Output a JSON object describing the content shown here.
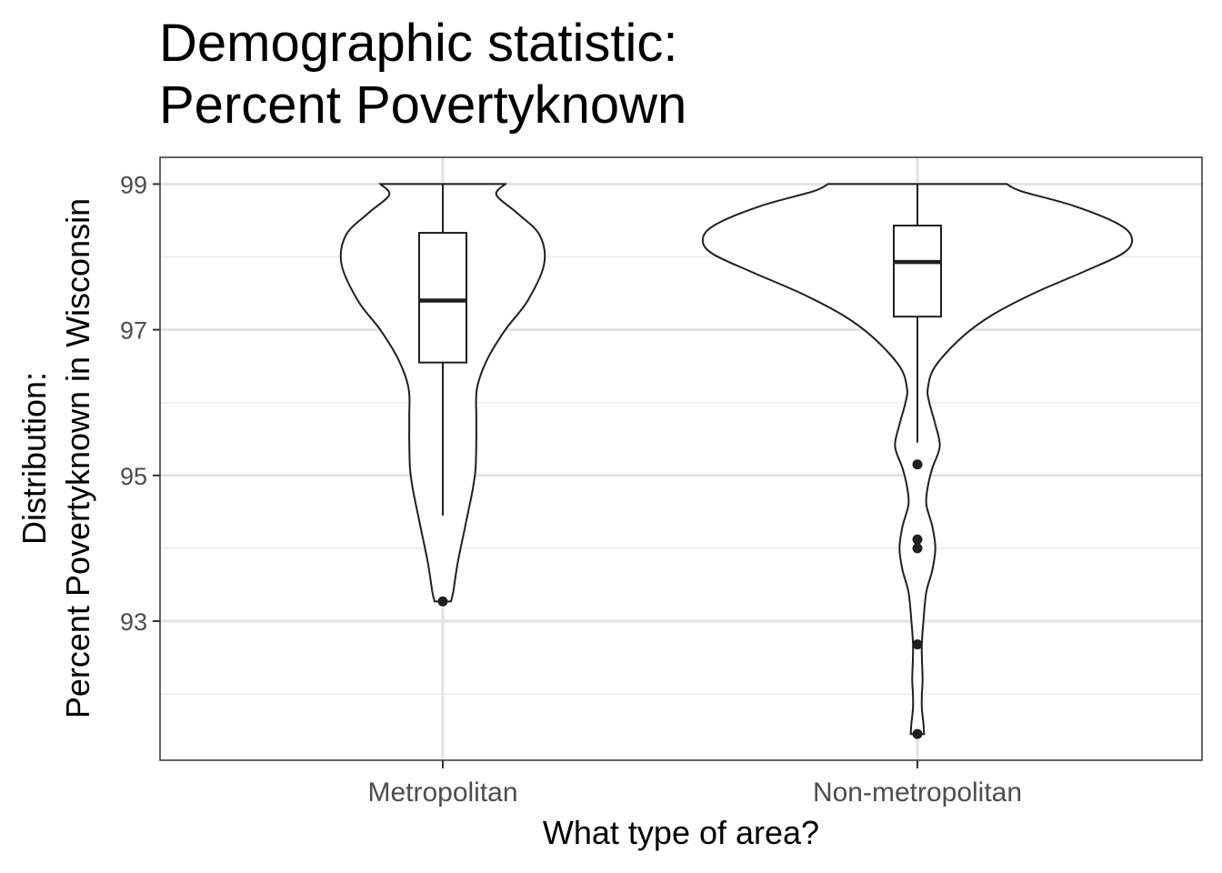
{
  "chart_data": {
    "type": "violin",
    "title": [
      "Demographic statistic:",
      "Percent Povertyknown"
    ],
    "xlabel": "What type of area?",
    "ylabel": [
      "Distribution:",
      "Percent Povertyknown in Wisconsin"
    ],
    "categories": [
      "Metropolitan",
      "Non-metropolitan"
    ],
    "y_ticks": [
      93,
      95,
      97,
      99
    ],
    "y_minor": [
      92,
      94,
      96,
      98
    ],
    "ylim": [
      91.8,
      99.35
    ],
    "grid": true,
    "groups": [
      {
        "name": "Metropolitan",
        "box": {
          "min": 94.45,
          "q1": 96.55,
          "median": 97.4,
          "q3": 98.33,
          "max": 99.0
        },
        "outliers": [
          93.27
        ],
        "density_range": [
          93.27,
          99.0
        ],
        "density": [
          [
            93.27,
            0.055
          ],
          [
            93.4,
            0.07
          ],
          [
            93.8,
            0.1
          ],
          [
            94.3,
            0.15
          ],
          [
            94.8,
            0.2
          ],
          [
            95.1,
            0.22
          ],
          [
            95.5,
            0.225
          ],
          [
            95.8,
            0.225
          ],
          [
            96.2,
            0.23
          ],
          [
            96.6,
            0.3
          ],
          [
            97.0,
            0.42
          ],
          [
            97.4,
            0.57
          ],
          [
            97.9,
            0.68
          ],
          [
            98.3,
            0.65
          ],
          [
            98.6,
            0.5
          ],
          [
            98.85,
            0.36
          ],
          [
            99.0,
            0.42
          ]
        ]
      },
      {
        "name": "Non-metropolitan",
        "box": {
          "min": 95.45,
          "q1": 97.18,
          "median": 97.93,
          "q3": 98.43,
          "max": 99.0
        },
        "outliers": [
          95.15,
          94.12,
          94.0,
          92.68,
          91.45
        ],
        "density_range": [
          91.45,
          99.0
        ],
        "density": [
          [
            91.45,
            0.045
          ],
          [
            91.6,
            0.04
          ],
          [
            91.8,
            0.03
          ],
          [
            92.0,
            0.03
          ],
          [
            92.2,
            0.035
          ],
          [
            92.5,
            0.03
          ],
          [
            92.7,
            0.03
          ],
          [
            93.0,
            0.04
          ],
          [
            93.4,
            0.06
          ],
          [
            93.7,
            0.1
          ],
          [
            94.0,
            0.12
          ],
          [
            94.3,
            0.1
          ],
          [
            94.6,
            0.06
          ],
          [
            94.85,
            0.07
          ],
          [
            95.1,
            0.1
          ],
          [
            95.4,
            0.15
          ],
          [
            95.7,
            0.12
          ],
          [
            96.0,
            0.08
          ],
          [
            96.2,
            0.07
          ],
          [
            96.5,
            0.12
          ],
          [
            96.9,
            0.3
          ],
          [
            97.2,
            0.5
          ],
          [
            97.5,
            0.78
          ],
          [
            97.8,
            1.12
          ],
          [
            98.05,
            1.38
          ],
          [
            98.25,
            1.44
          ],
          [
            98.45,
            1.35
          ],
          [
            98.7,
            1.05
          ],
          [
            98.9,
            0.7
          ],
          [
            99.0,
            0.6
          ]
        ]
      }
    ]
  }
}
